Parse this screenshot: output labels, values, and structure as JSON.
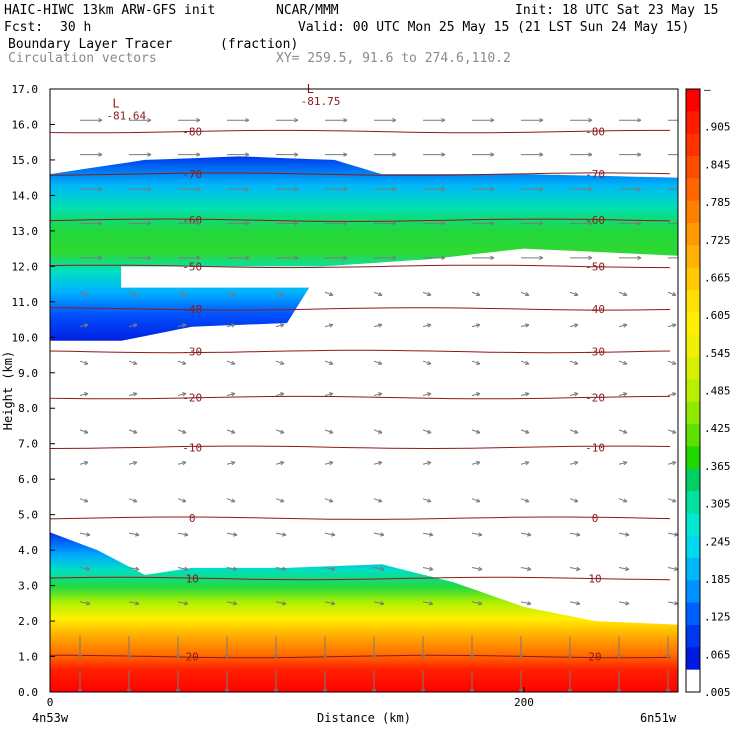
{
  "header": {
    "model": "HAIC-HIWC 13km ARW-GFS init",
    "org": "NCAR/MMM",
    "init": "Init: 18 UTC Sat 23 May 15",
    "fcst_label": "Fcst:",
    "fcst_value": "30 h",
    "valid": "Valid: 00 UTC Mon 25 May 15 (21 LST Sun 24 May 15)",
    "field1_name": "Boundary Layer Tracer",
    "field1_unit": "(fraction)",
    "field2_name": "Circulation vectors",
    "xy_range": "XY= 259.5, 91.6 to 274.6,110.2"
  },
  "chart_data": {
    "type": "heatmap",
    "ylabel": "Height (km)",
    "xlabel": "Distance (km)",
    "x_left_label": "4n53w",
    "x_right_label": "6n51w",
    "xlim": [
      0,
      265
    ],
    "ylim": [
      0.0,
      17.0
    ],
    "x_ticks": [
      0,
      200
    ],
    "y_ticks": [
      "0.0",
      "1.0",
      "2.0",
      "3.0",
      "4.0",
      "5.0",
      "6.0",
      "7.0",
      "8.0",
      "9.0",
      "10.0",
      "11.0",
      "12.0",
      "13.0",
      "14.0",
      "15.0",
      "16.0",
      "17.0"
    ],
    "colorbar": {
      "labels": [
        "–",
        ".905",
        ".845",
        ".785",
        ".725",
        ".665",
        ".605",
        ".545",
        ".485",
        ".425",
        ".365",
        ".305",
        ".245",
        ".185",
        ".125",
        ".065",
        ".005"
      ],
      "colors": [
        "#ff0000",
        "#ff1a00",
        "#ff3300",
        "#ff4d00",
        "#ff6600",
        "#ff8000",
        "#ff9900",
        "#ffb000",
        "#ffc800",
        "#ffe000",
        "#fff000",
        "#f0f000",
        "#d8f000",
        "#b8f000",
        "#90e800",
        "#60e000",
        "#20d800",
        "#00d060",
        "#00e0a0",
        "#00e8d0",
        "#00d8f0",
        "#00b8f8",
        "#0090ff",
        "#0060ff",
        "#0038f0",
        "#0018e0",
        "#ffffff"
      ]
    },
    "temperature_contours": [
      {
        "label": "-80",
        "height_km": 15.8
      },
      {
        "label": "-70",
        "height_km": 14.6
      },
      {
        "label": "-60",
        "height_km": 13.3
      },
      {
        "label": "-50",
        "height_km": 12.0
      },
      {
        "label": "-40",
        "height_km": 10.8
      },
      {
        "label": "-30",
        "height_km": 9.6
      },
      {
        "label": "-20",
        "height_km": 8.3
      },
      {
        "label": "-10",
        "height_km": 6.9
      },
      {
        "label": "0",
        "height_km": 4.9
      },
      {
        "label": "10",
        "height_km": 3.2
      },
      {
        "label": "20",
        "height_km": 1.0
      }
    ],
    "lows": [
      {
        "label": "L",
        "value": "-81.64",
        "x_km": 28,
        "height_km": 16.2
      },
      {
        "label": "L",
        "value": "-81.75",
        "x_km": 110,
        "height_km": 16.6
      }
    ],
    "upper_tracer_layer": {
      "top_km": [
        [
          0,
          14.6
        ],
        [
          40,
          15.0
        ],
        [
          80,
          15.1
        ],
        [
          120,
          15.0
        ],
        [
          140,
          14.6
        ],
        [
          200,
          14.6
        ],
        [
          265,
          14.5
        ]
      ],
      "bottom_km": [
        [
          0,
          9.9
        ],
        [
          30,
          9.9
        ],
        [
          60,
          10.3
        ],
        [
          100,
          10.4
        ],
        [
          115,
          12.0
        ],
        [
          160,
          12.2
        ],
        [
          200,
          12.5
        ],
        [
          265,
          12.3
        ]
      ]
    },
    "boundary_layer": {
      "top_km": [
        [
          0,
          4.5
        ],
        [
          20,
          4.0
        ],
        [
          40,
          3.3
        ],
        [
          60,
          3.5
        ],
        [
          100,
          3.5
        ],
        [
          140,
          3.6
        ],
        [
          170,
          3.1
        ],
        [
          200,
          2.4
        ],
        [
          230,
          2.0
        ],
        [
          265,
          1.9
        ]
      ]
    }
  }
}
